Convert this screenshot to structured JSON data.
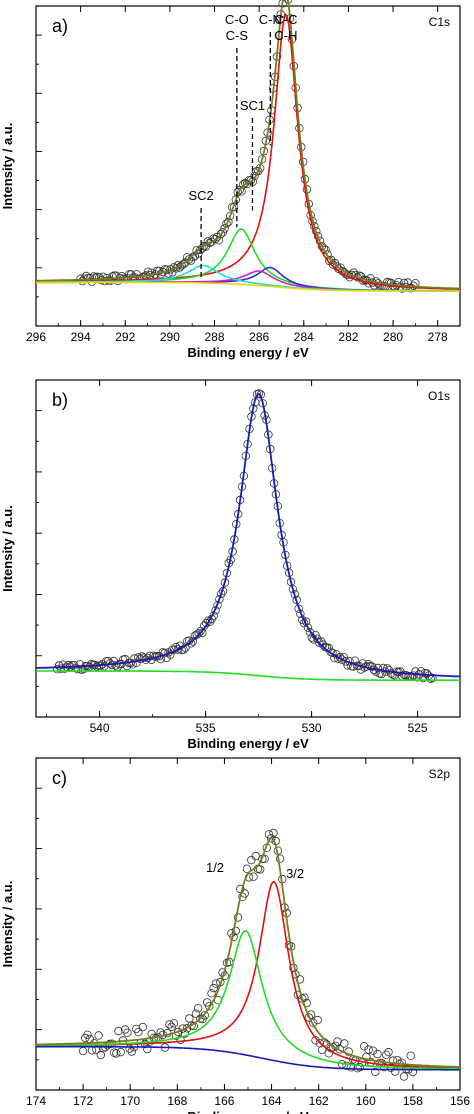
{
  "chart_data": [
    {
      "type": "scatter",
      "panel_label": "a)",
      "corner_label": "C1s",
      "xlabel": "Binding energy / eV",
      "ylabel": "Intensity / a.u.",
      "xlim": [
        296,
        277
      ],
      "ylim": [
        -0.1,
        1.0
      ],
      "x_ticks": [
        296,
        294,
        292,
        290,
        288,
        286,
        284,
        282,
        280,
        278
      ],
      "x_reversed": true,
      "y_tick_labels": false,
      "annotations": [
        {
          "lines": [
            "C-O",
            "C-S"
          ],
          "x": 287.0
        },
        {
          "lines": [
            "C-N"
          ],
          "x": 285.5
        },
        {
          "lines": [
            "C-C",
            "C-H"
          ],
          "x": 284.8
        },
        {
          "lines": [
            "SC1"
          ],
          "x": 286.3
        },
        {
          "lines": [
            "SC2"
          ],
          "x": 288.6
        }
      ],
      "series": [
        {
          "role": "raw",
          "style": "open-circle",
          "color": "#333333",
          "x_range": [
            294,
            279
          ],
          "n": 180
        },
        {
          "role": "envelope",
          "color": "#7a7a1e",
          "kind": "envelope"
        },
        {
          "role": "baseline",
          "color": "#e8d80a",
          "kind": "baseline"
        },
        {
          "role": "peak",
          "color": "#dd1111",
          "center": 284.8,
          "amp": 0.94,
          "fwhm": 1.3
        },
        {
          "role": "peak",
          "color": "#22dd22",
          "center": 286.8,
          "amp": 0.19,
          "fwhm": 1.5
        },
        {
          "role": "peak",
          "color": "#2a2ae0",
          "center": 285.5,
          "amp": 0.065,
          "fwhm": 1.4
        },
        {
          "role": "peak",
          "color": "#cc22cc",
          "center": 286.0,
          "amp": 0.05,
          "fwhm": 1.6
        },
        {
          "role": "peak",
          "color": "#22d8d8",
          "center": 288.5,
          "amp": 0.06,
          "fwhm": 1.7
        }
      ]
    },
    {
      "type": "scatter",
      "panel_label": "b)",
      "corner_label": "O1s",
      "xlabel": "Binding energy / eV",
      "ylabel": "Intensity / a.u.",
      "xlim": [
        543,
        523
      ],
      "ylim": [
        -0.1,
        1.0
      ],
      "x_ticks": [
        540,
        535,
        530,
        525
      ],
      "x_reversed": true,
      "y_tick_labels": false,
      "annotations": [],
      "series": [
        {
          "role": "raw",
          "style": "open-circle",
          "color": "#333333",
          "x_range": [
            542,
            524.3
          ],
          "n": 200
        },
        {
          "role": "envelope",
          "color": "#1a1ab4",
          "kind": "envelope"
        },
        {
          "role": "baseline",
          "color": "#22dd22",
          "kind": "baseline"
        },
        {
          "role": "peak",
          "color": "#1a1ab4",
          "center": 532.5,
          "amp": 0.92,
          "fwhm": 2.2
        }
      ]
    },
    {
      "type": "scatter",
      "panel_label": "c)",
      "corner_label": "S2p",
      "xlabel": "Binding energy / eV",
      "ylabel": "Intensity / a.u.",
      "xlim": [
        174,
        156
      ],
      "ylim": [
        -0.15,
        1.0
      ],
      "x_ticks": [
        174,
        172,
        170,
        168,
        166,
        164,
        162,
        160,
        158,
        156
      ],
      "x_reversed": true,
      "y_tick_labels": false,
      "annotations": [
        {
          "lines": [
            "1/2"
          ],
          "x": 166.4
        },
        {
          "lines": [
            "3/2"
          ],
          "x": 163.0
        }
      ],
      "series": [
        {
          "role": "raw",
          "style": "open-circle",
          "color": "#333333",
          "x_range": [
            172,
            158
          ],
          "n": 150
        },
        {
          "role": "envelope",
          "color": "#7a7a1e",
          "kind": "envelope"
        },
        {
          "role": "baseline",
          "color": "#1a1ab4",
          "kind": "baseline"
        },
        {
          "role": "peak",
          "color": "#dd1111",
          "center": 163.9,
          "amp": 0.62,
          "fwhm": 1.55
        },
        {
          "role": "peak",
          "color": "#22dd22",
          "center": 165.1,
          "amp": 0.43,
          "fwhm": 1.7
        }
      ]
    }
  ]
}
